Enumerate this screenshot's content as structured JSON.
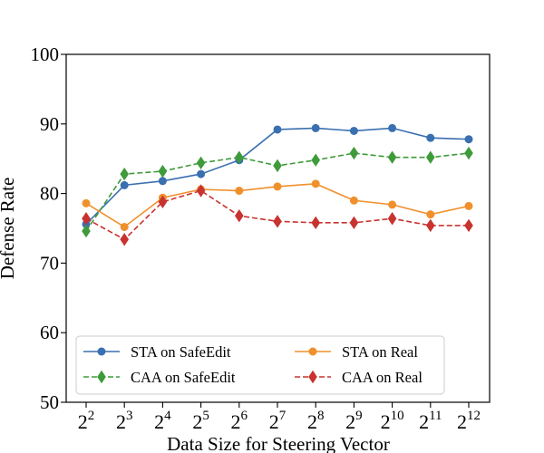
{
  "chart_data": {
    "type": "line",
    "xlabel": "Data Size for Steering Vector",
    "ylabel": "Defense Rate",
    "ylim": [
      50,
      100
    ],
    "yticks": [
      50,
      60,
      70,
      80,
      90,
      100
    ],
    "x_exponents": [
      "2",
      "3",
      "4",
      "5",
      "6",
      "7",
      "8",
      "9",
      "10",
      "11",
      "12"
    ],
    "x_base": "2",
    "grid": false,
    "legend_position": "lower center",
    "series": [
      {
        "name": "STA on SafeEdit",
        "color": "#3a6fb0",
        "style": "solid",
        "marker": "circle",
        "values": [
          75.6,
          81.2,
          81.8,
          82.8,
          84.8,
          89.2,
          89.4,
          89.0,
          89.4,
          88.0,
          87.8
        ]
      },
      {
        "name": "CAA on SafeEdit",
        "color": "#3f9b3a",
        "style": "dashed",
        "marker": "thin-diamond",
        "values": [
          74.6,
          82.8,
          83.2,
          84.4,
          85.2,
          84.0,
          84.8,
          85.8,
          85.2,
          85.2,
          85.8
        ]
      },
      {
        "name": "STA on Real",
        "color": "#f0902c",
        "style": "solid",
        "marker": "circle",
        "values": [
          78.6,
          75.2,
          79.4,
          80.6,
          80.4,
          81.0,
          81.4,
          79.0,
          78.4,
          77.0,
          78.2
        ]
      },
      {
        "name": "CAA on Real",
        "color": "#c8332f",
        "style": "dashed",
        "marker": "thin-diamond",
        "values": [
          76.4,
          73.4,
          78.8,
          80.4,
          76.8,
          76.0,
          75.8,
          75.8,
          76.4,
          75.4,
          75.4
        ]
      }
    ]
  }
}
